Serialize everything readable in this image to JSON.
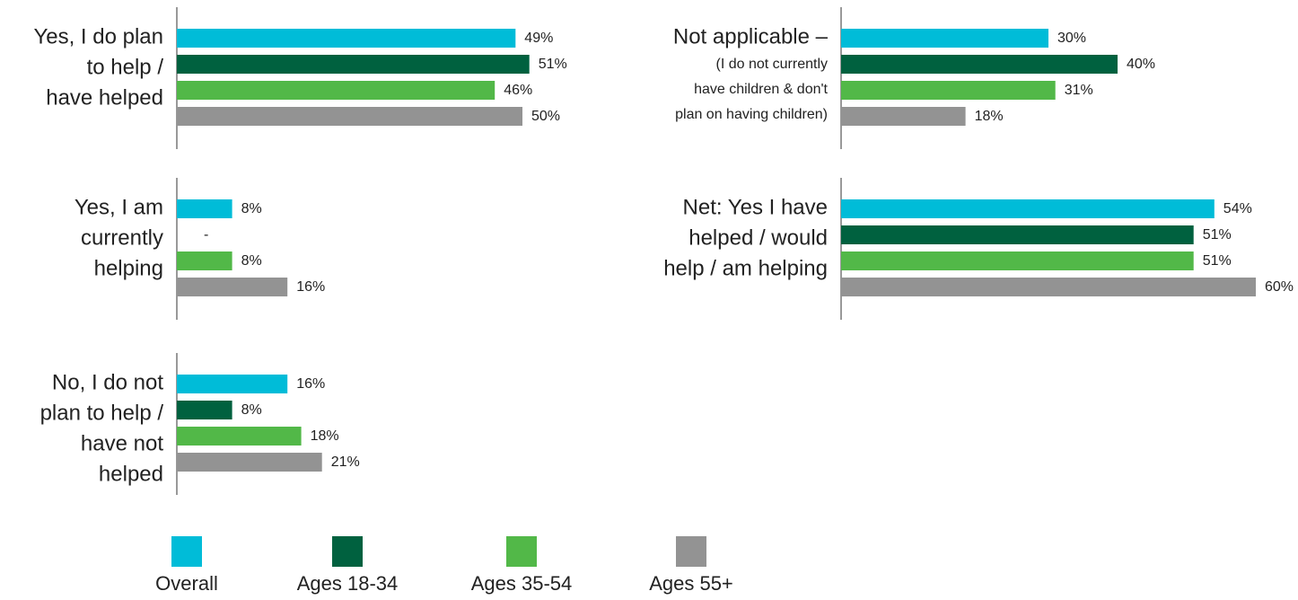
{
  "chart_data": {
    "type": "bar",
    "orientation": "horizontal",
    "categories": [
      [
        "Yes, I do plan",
        "to help /",
        "have helped"
      ],
      [
        "Not applicable –",
        "(I do not currently",
        "have children & don't",
        "plan on having children)"
      ],
      [
        "Yes, I am",
        "currently",
        "helping"
      ],
      [
        "Net: Yes I have",
        "helped / would",
        "help / am helping"
      ],
      [
        "No, I do not",
        "plan to help /",
        "have not",
        "helped"
      ]
    ],
    "series": [
      {
        "name": "Overall",
        "color": "#00bcd8",
        "values": [
          49,
          30,
          8,
          54,
          16
        ],
        "value_labels": [
          "49%",
          "30%",
          "8%",
          "54%",
          "16%"
        ]
      },
      {
        "name": "Ages 18-34",
        "color": "#00613f",
        "values": [
          51,
          40,
          null,
          51,
          8
        ],
        "value_labels": [
          "51%",
          "40%",
          "-",
          "51%",
          "8%"
        ]
      },
      {
        "name": "Ages 35-54",
        "color": "#52b848",
        "values": [
          46,
          31,
          8,
          51,
          18
        ],
        "value_labels": [
          "46%",
          "31%",
          "8%",
          "51%",
          "18%"
        ]
      },
      {
        "name": "Ages 55+",
        "color": "#939393",
        "values": [
          50,
          18,
          16,
          60,
          21
        ],
        "value_labels": [
          "50%",
          "18%",
          "16%",
          "60%",
          "21%"
        ]
      }
    ],
    "xlim": [
      0,
      60
    ]
  }
}
